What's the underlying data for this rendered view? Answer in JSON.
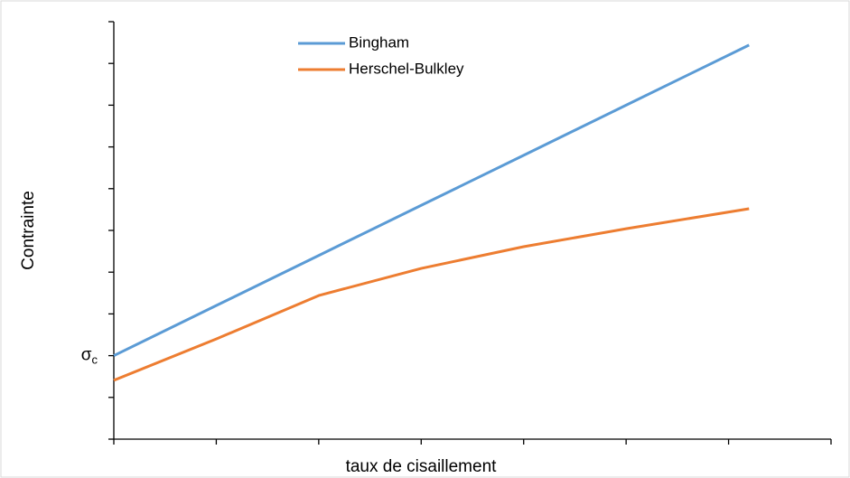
{
  "chart_data": {
    "type": "line",
    "xlabel": "taux de cisaillement",
    "ylabel": "Contrainte",
    "x": [
      0,
      1,
      2,
      3,
      4,
      5,
      6.2
    ],
    "series": [
      {
        "name": "Bingham",
        "color": "#5b9bd5",
        "values": [
          2,
          3.2,
          4.4,
          5.6,
          6.8,
          8.0,
          9.44
        ]
      },
      {
        "name": "Herschel-Bulkley",
        "color": "#ed7d31",
        "values": [
          1.41,
          2.4,
          3.44,
          4.09,
          4.61,
          5.04,
          5.52
        ]
      }
    ],
    "xlim": [
      0,
      7
    ],
    "xticks": [
      0,
      1,
      2,
      3,
      4,
      5,
      6,
      7
    ],
    "ylim": [
      0,
      10
    ],
    "yticks": [
      0,
      1,
      {
        "value": 2,
        "label": "σc"
      },
      3,
      4,
      5,
      6,
      7,
      8,
      9,
      10
    ],
    "legend": "top"
  }
}
